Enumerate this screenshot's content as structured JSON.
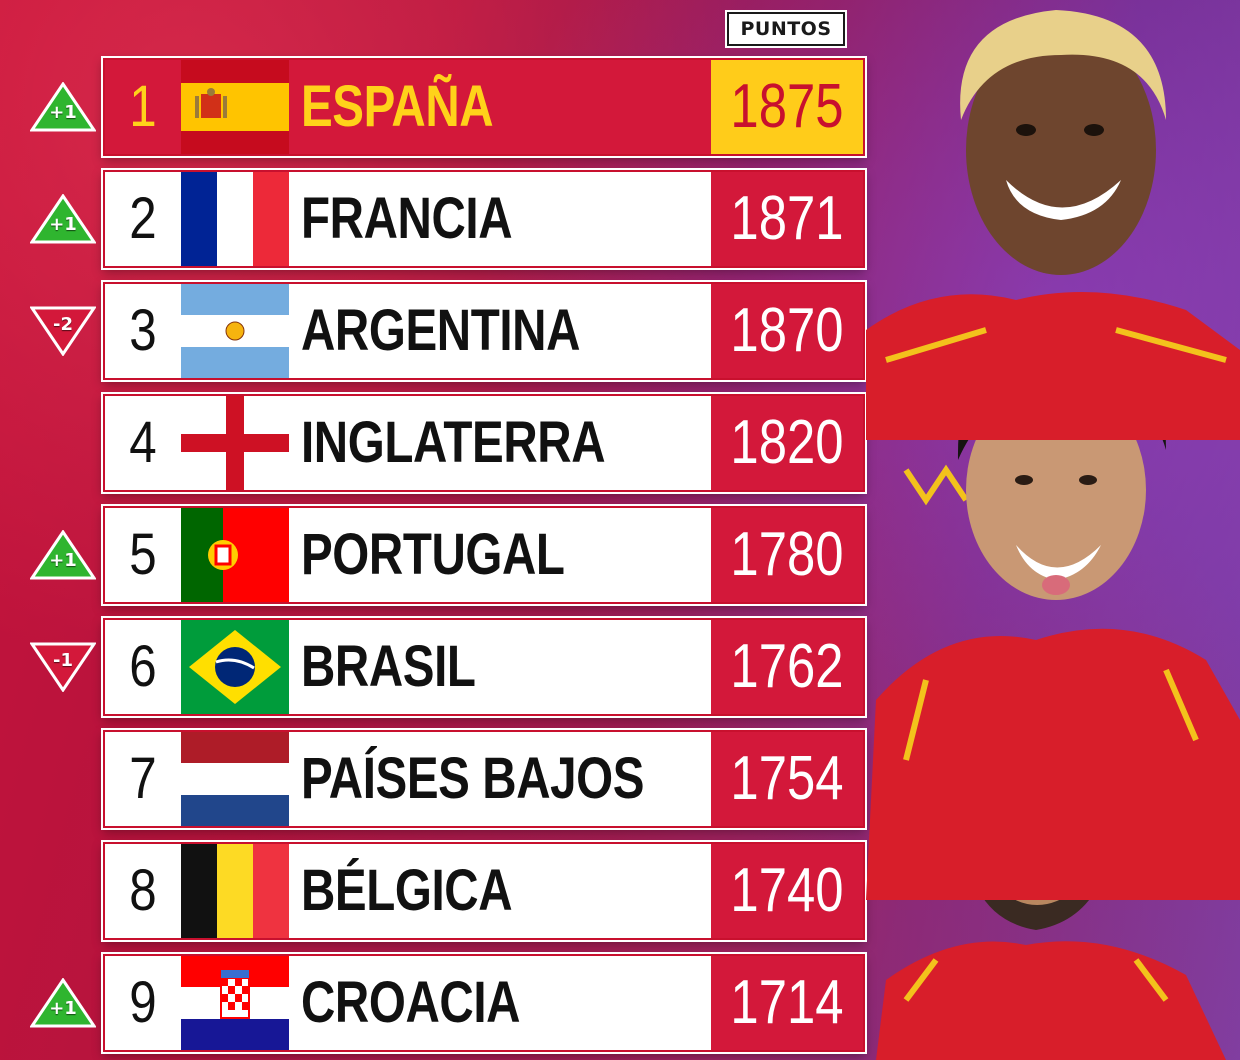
{
  "header": {
    "points_label": "PUNTOS"
  },
  "colors": {
    "accent_red": "#d3183a",
    "accent_yellow": "#ffcc1a",
    "up_green": "#2fb52f",
    "down_red": "#d3183a"
  },
  "rankings": [
    {
      "rank": "1",
      "country": "ESPAÑA",
      "points": "1875",
      "change": "+1",
      "trend": "up",
      "flag": "spain-flag-icon"
    },
    {
      "rank": "2",
      "country": "FRANCIA",
      "points": "1871",
      "change": "+1",
      "trend": "up",
      "flag": "france-flag-icon"
    },
    {
      "rank": "3",
      "country": "ARGENTINA",
      "points": "1870",
      "change": "-2",
      "trend": "down",
      "flag": "argentina-flag-icon"
    },
    {
      "rank": "4",
      "country": "INGLATERRA",
      "points": "1820",
      "change": "",
      "trend": "none",
      "flag": "england-flag-icon"
    },
    {
      "rank": "5",
      "country": "PORTUGAL",
      "points": "1780",
      "change": "+1",
      "trend": "up",
      "flag": "portugal-flag-icon"
    },
    {
      "rank": "6",
      "country": "BRASIL",
      "points": "1762",
      "change": "-1",
      "trend": "down",
      "flag": "brazil-flag-icon"
    },
    {
      "rank": "7",
      "country": "PAÍSES BAJOS",
      "points": "1754",
      "change": "",
      "trend": "none",
      "flag": "netherlands-flag-icon"
    },
    {
      "rank": "8",
      "country": "BÉLGICA",
      "points": "1740",
      "change": "",
      "trend": "none",
      "flag": "belgium-flag-icon"
    },
    {
      "rank": "9",
      "country": "CROACIA",
      "points": "1714",
      "change": "+1",
      "trend": "up",
      "flag": "croatia-flag-icon"
    }
  ]
}
